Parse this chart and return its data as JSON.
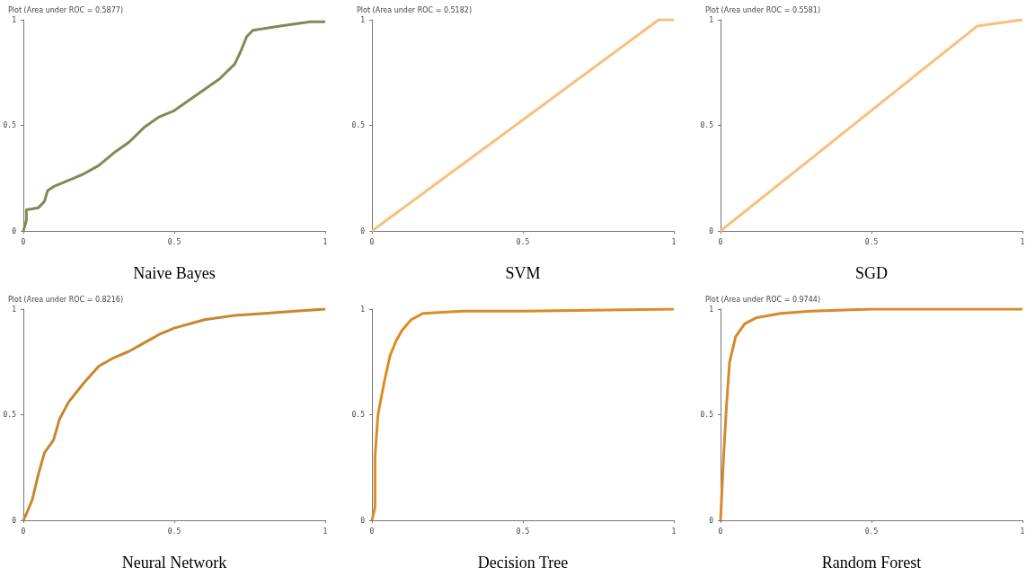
{
  "chart_data": [
    {
      "type": "line",
      "title": "Plot (Area under ROC = 0.5877)",
      "xlabel": "Naive Bayes",
      "xlim": [
        0,
        1
      ],
      "ylim": [
        0,
        1
      ],
      "xticks": [
        0,
        0.5,
        1
      ],
      "yticks": [
        0,
        0.5,
        1
      ],
      "series": [
        {
          "color": "#7d8c55",
          "x": [
            0,
            0.01,
            0.01,
            0.05,
            0.07,
            0.08,
            0.1,
            0.2,
            0.25,
            0.3,
            0.35,
            0.4,
            0.45,
            0.5,
            0.55,
            0.6,
            0.65,
            0.7,
            0.72,
            0.74,
            0.76,
            0.85,
            0.95,
            1
          ],
          "values": [
            0,
            0.05,
            0.1,
            0.11,
            0.14,
            0.19,
            0.21,
            0.27,
            0.31,
            0.37,
            0.42,
            0.49,
            0.54,
            0.57,
            0.62,
            0.67,
            0.72,
            0.79,
            0.85,
            0.92,
            0.95,
            0.97,
            0.99,
            0.99
          ]
        }
      ]
    },
    {
      "type": "line",
      "title": "Plot (Area under ROC = 0.5182)",
      "xlabel": "SVM",
      "xlim": [
        0,
        1
      ],
      "ylim": [
        0,
        1
      ],
      "xticks": [
        0,
        0.5,
        1
      ],
      "yticks": [
        0,
        0.5,
        1
      ],
      "series": [
        {
          "color": "#f7c07e",
          "x": [
            0,
            0.95,
            1
          ],
          "values": [
            0,
            1,
            1
          ]
        }
      ]
    },
    {
      "type": "line",
      "title": "Plot (Area under ROC = 0.5581)",
      "xlabel": "SGD",
      "xlim": [
        0,
        1
      ],
      "ylim": [
        0,
        1
      ],
      "xticks": [
        0,
        0.5,
        1
      ],
      "yticks": [
        0,
        0.5,
        1
      ],
      "series": [
        {
          "color": "#f7c07e",
          "x": [
            0,
            0.85,
            1
          ],
          "values": [
            0,
            0.97,
            1
          ]
        }
      ]
    },
    {
      "type": "line",
      "title": "Plot (Area under ROC = 0.8216)",
      "xlabel": "Neural Network",
      "xlim": [
        0,
        1
      ],
      "ylim": [
        0,
        1
      ],
      "xticks": [
        0,
        0.5,
        1
      ],
      "yticks": [
        0,
        0.5,
        1
      ],
      "series": [
        {
          "color": "#c8862e",
          "x": [
            0,
            0.01,
            0.03,
            0.05,
            0.07,
            0.1,
            0.12,
            0.15,
            0.2,
            0.25,
            0.3,
            0.35,
            0.4,
            0.45,
            0.5,
            0.6,
            0.7,
            0.8,
            0.9,
            1
          ],
          "values": [
            0,
            0.03,
            0.1,
            0.22,
            0.32,
            0.38,
            0.48,
            0.56,
            0.65,
            0.73,
            0.77,
            0.8,
            0.84,
            0.88,
            0.91,
            0.95,
            0.97,
            0.98,
            0.99,
            1
          ]
        }
      ]
    },
    {
      "type": "line",
      "xlabel": "Decision Tree",
      "xlim": [
        0,
        1
      ],
      "ylim": [
        0,
        1
      ],
      "xticks": [
        0,
        0.5,
        1
      ],
      "yticks": [
        0,
        0.5,
        1
      ],
      "series": [
        {
          "color": "#e08a22",
          "x": [
            0,
            0.01,
            0.01,
            0.02,
            0.04,
            0.06,
            0.08,
            0.1,
            0.13,
            0.17,
            0.3,
            0.5,
            1
          ],
          "values": [
            0,
            0.06,
            0.3,
            0.5,
            0.65,
            0.78,
            0.85,
            0.9,
            0.95,
            0.98,
            0.99,
            0.99,
            1
          ]
        }
      ]
    },
    {
      "type": "line",
      "title": "Plot (Area under ROC = 0.9744)",
      "xlabel": "Random Forest",
      "xlim": [
        0,
        1
      ],
      "ylim": [
        0,
        1
      ],
      "xticks": [
        0,
        0.5,
        1
      ],
      "yticks": [
        0,
        0.5,
        1
      ],
      "series": [
        {
          "color": "#d8892a",
          "x": [
            0,
            0.01,
            0.02,
            0.03,
            0.05,
            0.08,
            0.12,
            0.2,
            0.3,
            0.5,
            1
          ],
          "values": [
            0,
            0.3,
            0.55,
            0.75,
            0.87,
            0.93,
            0.96,
            0.98,
            0.99,
            1,
            1
          ]
        }
      ]
    }
  ]
}
